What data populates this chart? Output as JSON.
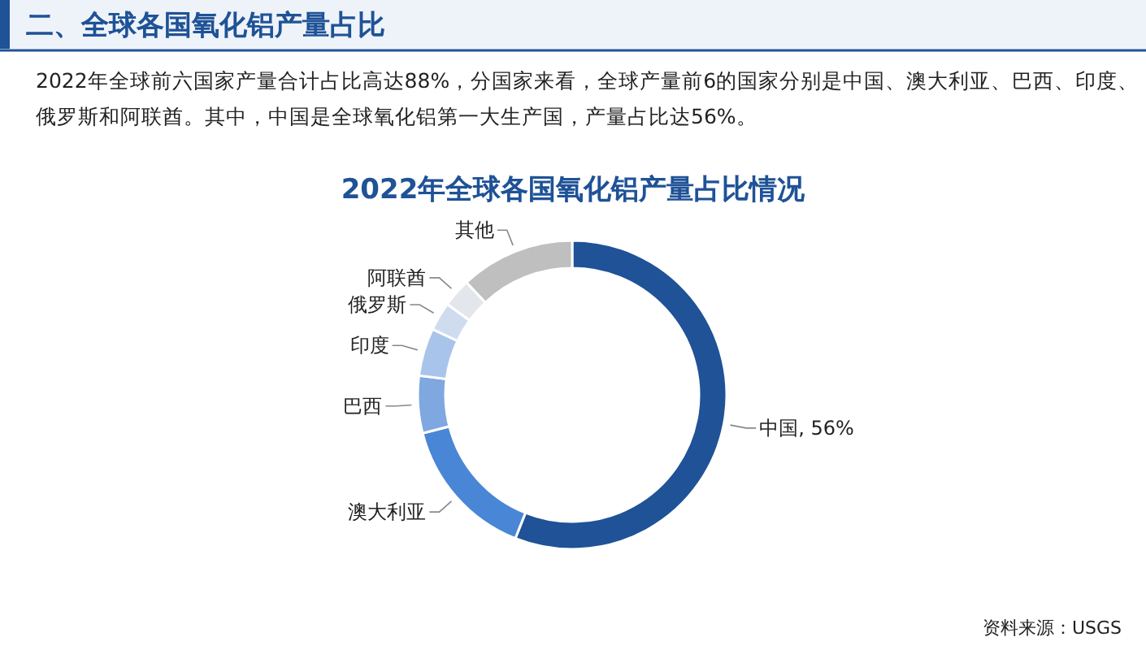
{
  "chart_data": {
    "type": "donut",
    "title": "2022年全球各国氧化铝产量占比情况",
    "subtitle": "2022年全球前六国家产量合计占比高达88%，分国家来看，全球产量前6的国家分别是中国、澳大利亚、巴西、印度、俄罗斯和阿联酋。其中，中国是全球氧化铝第一大生产国，产量占比达56%。",
    "annotations": [
      "二、全球各国氧化铝产量占比",
      "资料来源：USGS"
    ],
    "categories": [
      "中国",
      "澳大利亚",
      "巴西",
      "印度",
      "俄罗斯",
      "阿联酋",
      "其他"
    ],
    "values": [
      56,
      15,
      6,
      5,
      3,
      3,
      12
    ],
    "value_labels": [
      "56%",
      null,
      null,
      null,
      null,
      null,
      null
    ],
    "colors": [
      "#1f5296",
      "#4a86d6",
      "#7fa7e0",
      "#a9c4ea",
      "#cfdcf0",
      "#e3e6ea",
      "#bfbfbf"
    ]
  }
}
